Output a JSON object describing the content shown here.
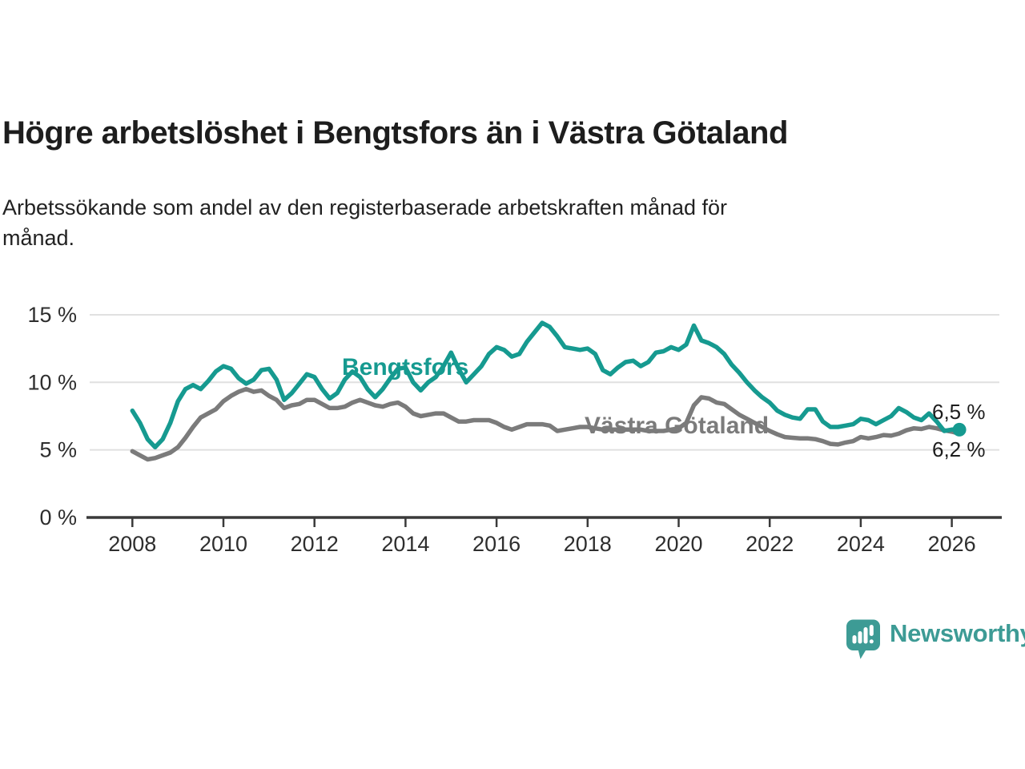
{
  "title": "Högre arbetslöshet i Bengtsfors än i Västra Götaland",
  "subtitle_lines": [
    "Arbetssökande som andel av den registerbaserade arbetskraften månad för",
    "månad."
  ],
  "branding": {
    "text": "Newsworthy",
    "icon": "bar-chart-speech-bubble-icon"
  },
  "colors": {
    "bengtsfors": "#169a90",
    "vastra_gotaland": "#7b7b7b",
    "grid": "#e0e0e0",
    "axis": "#3a3a3a",
    "tick_text": "#2e2e2e",
    "end_label_text": "#1d1d1d",
    "logo": "#3d9b95"
  },
  "chart_data": {
    "type": "line",
    "title": "Högre arbetslöshet i Bengtsfors än i Västra Götaland",
    "subtitle": "Arbetssökande som andel av den registerbaserade arbetskraften månad för månad.",
    "ylabel": "",
    "xlabel": "",
    "unit": "%",
    "ylim": [
      0,
      15.6
    ],
    "xlim": [
      2007.9,
      2026.6
    ],
    "grid": "horizontal",
    "legend_position": "inline-labels",
    "x_start": 2008.0,
    "x_step": 0.1666667,
    "x_ticks": [
      {
        "year": 2008,
        "label": "2008"
      },
      {
        "year": 2010,
        "label": "2010"
      },
      {
        "year": 2012,
        "label": "2012"
      },
      {
        "year": 2014,
        "label": "2014"
      },
      {
        "year": 2016,
        "label": "2016"
      },
      {
        "year": 2018,
        "label": "2018"
      },
      {
        "year": 2020,
        "label": "2020"
      },
      {
        "year": 2022,
        "label": "2022"
      },
      {
        "year": 2024,
        "label": "2024"
      },
      {
        "year": 2026,
        "label": "2026"
      }
    ],
    "y_ticks": [
      {
        "value": 0,
        "label": "0 %"
      },
      {
        "value": 5,
        "label": "5 %"
      },
      {
        "value": 10,
        "label": "10 %"
      },
      {
        "value": 15,
        "label": "15 %"
      }
    ],
    "y_gridlines": [
      5,
      10,
      15
    ],
    "series": [
      {
        "name": "Bengtsfors",
        "color": "#169a90",
        "end_label": "6,5 %",
        "end_value": 6.5,
        "end_dot": true,
        "values": [
          7.9,
          7.0,
          5.8,
          5.2,
          5.8,
          7.0,
          8.6,
          9.5,
          9.8,
          9.5,
          10.1,
          10.8,
          11.2,
          11.0,
          10.3,
          9.9,
          10.2,
          10.9,
          11.0,
          10.2,
          8.7,
          9.2,
          9.9,
          10.6,
          10.4,
          9.5,
          8.8,
          9.2,
          10.2,
          10.8,
          10.4,
          9.5,
          8.9,
          9.5,
          10.3,
          11.0,
          11.1,
          10.0,
          9.4,
          10.0,
          10.4,
          11.2,
          12.2,
          11.0,
          10.0,
          10.6,
          11.2,
          12.1,
          12.6,
          12.4,
          11.9,
          12.1,
          13.0,
          13.7,
          14.4,
          14.1,
          13.4,
          12.6,
          12.5,
          12.4,
          12.5,
          12.1,
          10.9,
          10.6,
          11.1,
          11.5,
          11.6,
          11.2,
          11.5,
          12.2,
          12.3,
          12.6,
          12.4,
          12.8,
          14.2,
          13.1,
          12.9,
          12.6,
          12.1,
          11.3,
          10.7,
          10.0,
          9.4,
          8.9,
          8.5,
          7.9,
          7.6,
          7.4,
          7.3,
          8.0,
          8.0,
          7.1,
          6.7,
          6.7,
          6.8,
          6.9,
          7.3,
          7.2,
          6.9,
          7.2,
          7.5,
          8.1,
          7.8,
          7.4,
          7.2,
          7.7,
          7.1,
          6.4,
          6.5,
          6.5
        ]
      },
      {
        "name": "Västra Götaland",
        "color": "#7b7b7b",
        "end_label": "6,2 %",
        "end_value": 6.2,
        "end_dot": false,
        "values": [
          4.9,
          4.6,
          4.3,
          4.4,
          4.6,
          4.8,
          5.2,
          5.9,
          6.7,
          7.4,
          7.7,
          8.0,
          8.6,
          9.0,
          9.3,
          9.5,
          9.3,
          9.4,
          9.0,
          8.7,
          8.1,
          8.3,
          8.4,
          8.7,
          8.7,
          8.4,
          8.1,
          8.1,
          8.2,
          8.5,
          8.7,
          8.5,
          8.3,
          8.2,
          8.4,
          8.5,
          8.2,
          7.7,
          7.5,
          7.6,
          7.7,
          7.7,
          7.4,
          7.1,
          7.1,
          7.2,
          7.2,
          7.2,
          7.0,
          6.7,
          6.5,
          6.7,
          6.9,
          6.9,
          6.9,
          6.8,
          6.4,
          6.5,
          6.6,
          6.7,
          6.7,
          6.6,
          6.5,
          6.5,
          6.5,
          6.5,
          6.5,
          6.5,
          6.4,
          6.4,
          6.4,
          6.5,
          6.6,
          7.0,
          8.3,
          8.9,
          8.8,
          8.5,
          8.4,
          8.0,
          7.6,
          7.3,
          7.0,
          6.7,
          6.4,
          6.15,
          5.95,
          5.9,
          5.85,
          5.85,
          5.8,
          5.65,
          5.45,
          5.4,
          5.55,
          5.65,
          5.95,
          5.85,
          5.95,
          6.1,
          6.05,
          6.2,
          6.45,
          6.6,
          6.55,
          6.7,
          6.6,
          6.45,
          6.35,
          6.2
        ]
      }
    ]
  }
}
